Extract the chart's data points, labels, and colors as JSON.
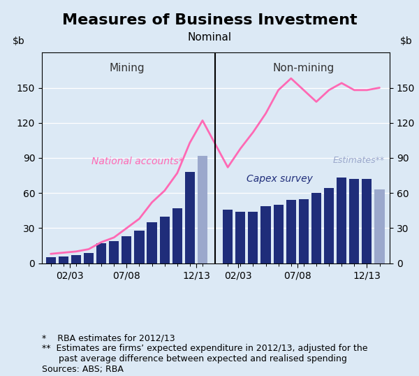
{
  "title": "Measures of Business Investment",
  "subtitle": "Nominal",
  "ylim": [
    0,
    180
  ],
  "yticks": [
    0,
    30,
    60,
    90,
    120,
    150
  ],
  "background_color": "#dce9f5",
  "plot_bg_color": "#dce9f5",
  "mining_label": "Mining",
  "nonmining_label": "Non-mining",
  "capex_label": "Capex survey",
  "natacct_label": "National accounts*",
  "estimates_label": "Estimates**",
  "mining_bar_x": [
    1,
    2,
    3,
    4,
    5,
    6,
    7,
    8,
    9,
    10,
    11,
    12,
    13
  ],
  "mining_bar_heights": [
    5,
    6,
    7,
    9,
    17,
    19,
    23,
    28,
    35,
    40,
    47,
    78,
    92
  ],
  "mining_bar_colors": [
    "#1f2d7a",
    "#1f2d7a",
    "#1f2d7a",
    "#1f2d7a",
    "#1f2d7a",
    "#1f2d7a",
    "#1f2d7a",
    "#1f2d7a",
    "#1f2d7a",
    "#1f2d7a",
    "#1f2d7a",
    "#1f2d7a",
    "#9ba8cc"
  ],
  "nonmining_bar_x": [
    15,
    16,
    17,
    18,
    19,
    20,
    21,
    22,
    23,
    24,
    25,
    26,
    27
  ],
  "nonmining_bar_heights": [
    46,
    44,
    44,
    49,
    50,
    54,
    55,
    60,
    64,
    73,
    72,
    72,
    63
  ],
  "nonmining_bar_colors": [
    "#1f2d7a",
    "#1f2d7a",
    "#1f2d7a",
    "#1f2d7a",
    "#1f2d7a",
    "#1f2d7a",
    "#1f2d7a",
    "#1f2d7a",
    "#1f2d7a",
    "#1f2d7a",
    "#1f2d7a",
    "#1f2d7a",
    "#9ba8cc"
  ],
  "natacct_x": [
    1,
    2,
    3,
    4,
    5,
    6,
    7,
    8,
    9,
    10,
    11,
    12,
    13,
    15,
    16,
    17,
    18,
    19,
    20,
    21,
    22,
    23,
    24,
    25,
    26,
    27
  ],
  "natacct_y": [
    8,
    9,
    10,
    12,
    18,
    22,
    30,
    38,
    52,
    62,
    77,
    103,
    122,
    82,
    98,
    112,
    128,
    148,
    158,
    148,
    138,
    148,
    154,
    148,
    148,
    150
  ],
  "natacct_color": "#ff69b4",
  "divider_x": 14.0,
  "xtick_positions": [
    2.5,
    7.0,
    12.5,
    15.8,
    20.5,
    26.0
  ],
  "xtick_labels": [
    "02/03",
    "07/08",
    "12/13",
    "02/03",
    "07/08",
    "12/13"
  ],
  "footnote1": "*    RBA estimates for 2012/13",
  "footnote2": "**  Estimates are firms’ expected expenditure in 2012/13, adjusted for the\n      past average difference between expected and realised spending",
  "footnote3": "Sources: ABS; RBA",
  "title_fontsize": 16,
  "subtitle_fontsize": 11,
  "tick_fontsize": 10,
  "annotation_fontsize": 10,
  "footnote_fontsize": 9
}
